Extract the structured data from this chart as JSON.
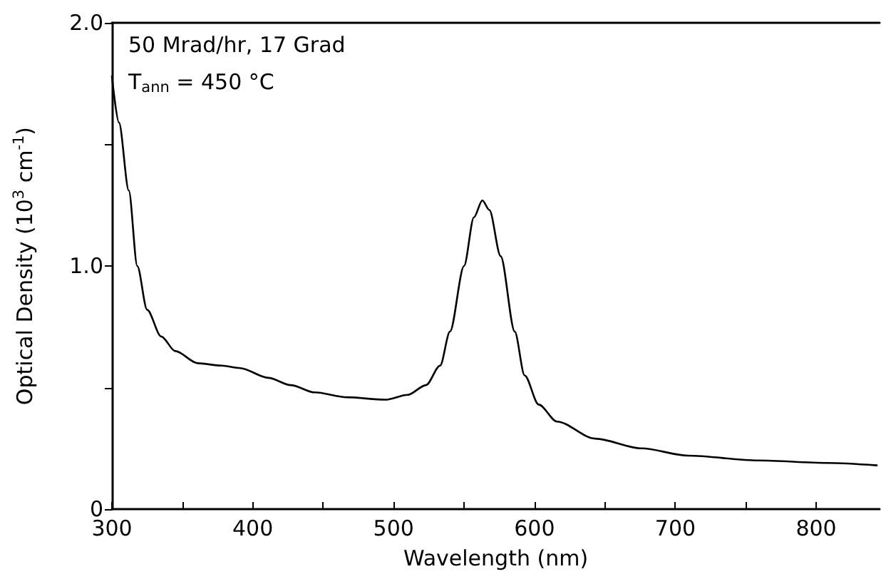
{
  "chart_data": {
    "type": "line",
    "xlabel": "Wavelength (nm)",
    "ylabel": "Optical Density (10$^{3}$ cm$^{-1}$)",
    "annotations": [
      "50 Mrad/hr, 17 Grad",
      "T$_{ann}$ = 450 °C"
    ],
    "x": [
      300,
      305,
      312,
      318,
      325,
      335,
      345,
      361,
      378,
      391,
      411,
      427,
      444,
      467,
      494,
      510,
      523,
      533,
      540,
      550,
      557,
      563,
      568,
      576,
      586,
      593,
      603,
      616,
      643,
      676,
      709,
      759,
      808,
      843
    ],
    "series": [
      {
        "color": "#000000",
        "values": [
          1.78,
          1.59,
          1.31,
          1.0,
          0.82,
          0.71,
          0.65,
          0.6,
          0.59,
          0.58,
          0.54,
          0.51,
          0.48,
          0.46,
          0.45,
          0.47,
          0.51,
          0.59,
          0.73,
          1.0,
          1.2,
          1.27,
          1.23,
          1.04,
          0.73,
          0.55,
          0.43,
          0.36,
          0.29,
          0.25,
          0.22,
          0.2,
          0.19,
          0.18
        ]
      }
    ],
    "xlim": [
      300,
      845
    ],
    "xticks": [
      300,
      {
        "value": 350,
        "label": null
      },
      400,
      {
        "value": 450,
        "label": null
      },
      500,
      {
        "value": 550,
        "label": null
      },
      600,
      {
        "value": 650,
        "label": null
      },
      700,
      {
        "value": 750,
        "label": null
      },
      800
    ],
    "ylim": [
      0,
      2
    ],
    "yticks": [
      0,
      {
        "value": 0.5,
        "label": null
      },
      {
        "value": 1,
        "label": "1.0"
      },
      {
        "value": 1.5,
        "label": null
      },
      {
        "value": 2,
        "label": "2.0"
      }
    ],
    "grid": false,
    "marker": "none",
    "line_style": "solid"
  }
}
